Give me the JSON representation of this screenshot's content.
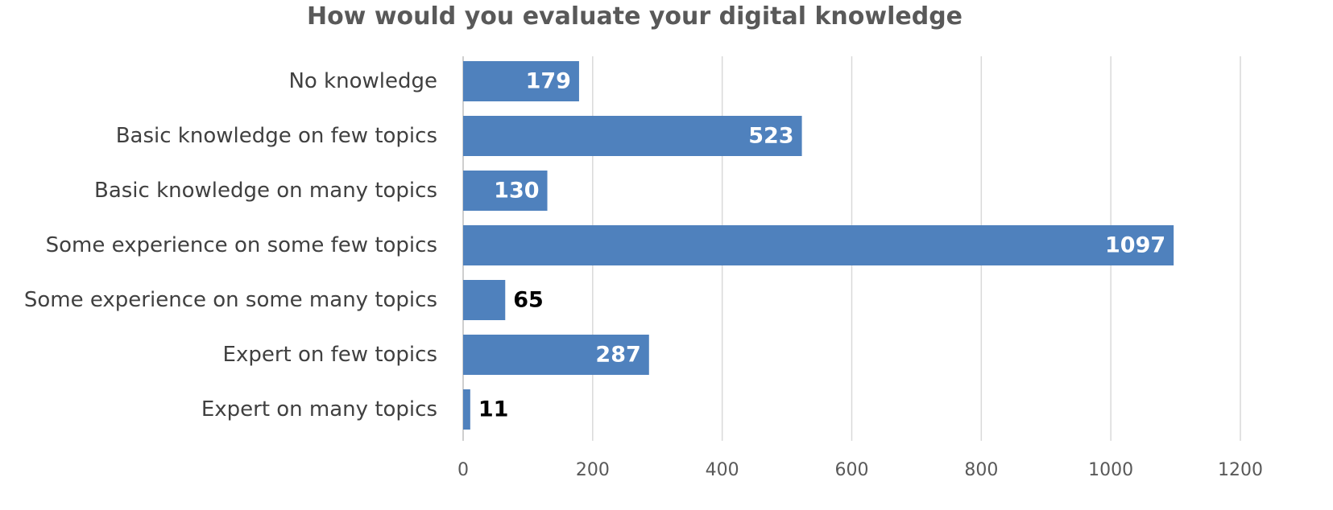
{
  "chart_data": {
    "type": "bar",
    "orientation": "horizontal",
    "title": "How would you evaluate your digital knowledge",
    "xlabel": "",
    "ylabel": "",
    "categories": [
      "No knowledge",
      "Basic knowledge on few topics",
      "Basic knowledge on many topics",
      "Some experience on some few topics",
      "Some experience on some many topics",
      "Expert on few topics",
      "Expert on many topics"
    ],
    "values": [
      179,
      523,
      130,
      1097,
      65,
      287,
      11
    ],
    "xlim": [
      0,
      1200
    ],
    "xticks": [
      "0",
      "200",
      "400",
      "600",
      "800",
      "1000",
      "1200"
    ],
    "grid": true,
    "legend": "none",
    "colors": {
      "bar": "#4f81bd",
      "data_label_inside": "#ffffff",
      "data_label_outside": "#000000"
    }
  }
}
